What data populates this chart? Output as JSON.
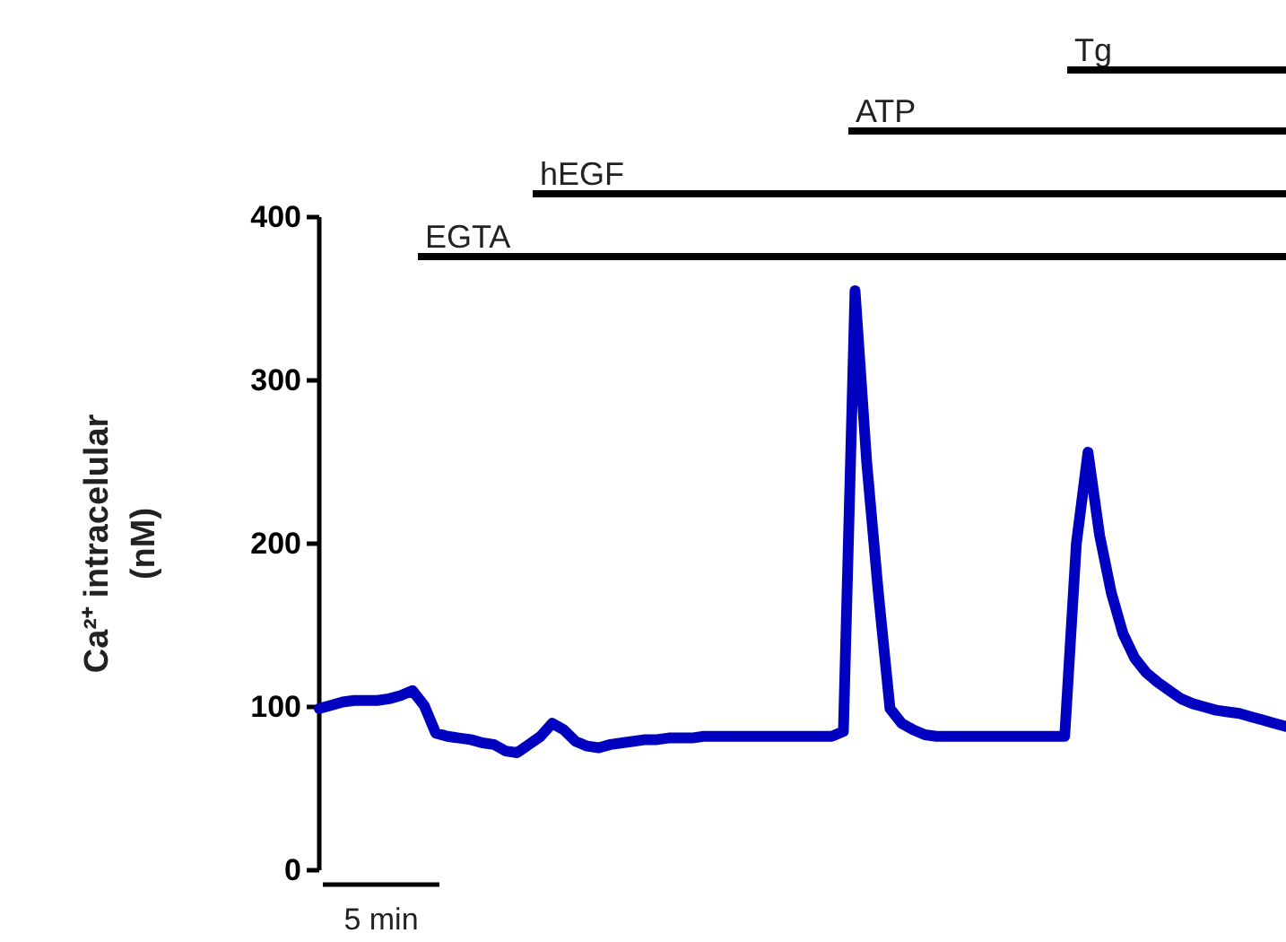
{
  "chart_data": {
    "type": "line",
    "ylabel": "Ca²⁺ intracelular (nM)",
    "categories": [
      null,
      null,
      null,
      null,
      null,
      null,
      null,
      null,
      null,
      null,
      null,
      null,
      null,
      null,
      null,
      null,
      null,
      null,
      null,
      null,
      null,
      null,
      null,
      null,
      null,
      null,
      null,
      null,
      null,
      null,
      null,
      null,
      null,
      null,
      null,
      null,
      null,
      null,
      null,
      null,
      null,
      null,
      null,
      null,
      null,
      null,
      null,
      null,
      null,
      null,
      null,
      null,
      null,
      null,
      null,
      null,
      null,
      null,
      null,
      null,
      null,
      null,
      null,
      null,
      null,
      null,
      null,
      null,
      null,
      null,
      null,
      null,
      null,
      null,
      null,
      null,
      null,
      null,
      null,
      null,
      null,
      null,
      null,
      null
    ],
    "series": [
      {
        "color": "#0000c0",
        "values": [
          99,
          101,
          103,
          104,
          104,
          104,
          105,
          107,
          110,
          101,
          84,
          82,
          81,
          80,
          78,
          77,
          73,
          72,
          77,
          82,
          90,
          86,
          79,
          76,
          75,
          77,
          78,
          79,
          80,
          80,
          81,
          81,
          81,
          82,
          82,
          82,
          82,
          82,
          82,
          82,
          82,
          82,
          82,
          82,
          82,
          85,
          355,
          250,
          170,
          99,
          90,
          86,
          83,
          82,
          82,
          82,
          82,
          82,
          82,
          82,
          82,
          82,
          82,
          82,
          82,
          200,
          256,
          205,
          170,
          145,
          130,
          121,
          115,
          110,
          105,
          102,
          100,
          98,
          97,
          96,
          94,
          92,
          90,
          88
        ]
      }
    ],
    "ylim": [
      0,
      400
    ],
    "yticks": [
      0,
      100,
      200,
      300,
      400
    ],
    "annotations": [
      "5 min",
      "EGTA",
      "hEGF",
      "ATP",
      "Tg"
    ],
    "line_style": "solid",
    "marker": "none",
    "grid": false
  }
}
